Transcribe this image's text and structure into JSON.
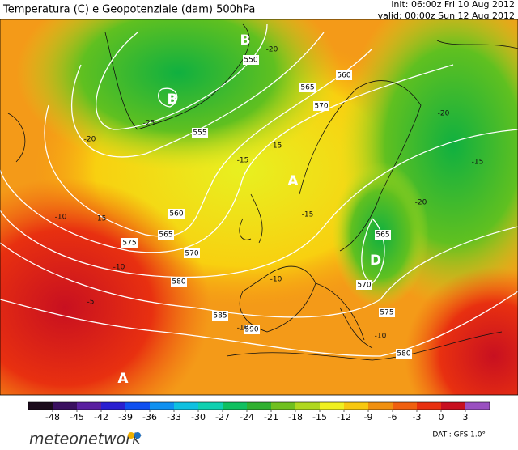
{
  "header": {
    "title": "Temperatura (C) e Geopotenziale (dam) 500hPa",
    "init": "init: 06:00z Fri 10 Aug 2012",
    "valid": "valid: 00:00z Sun 12 Aug 2012"
  },
  "map": {
    "geopotential_labels": [
      "550",
      "555",
      "560",
      "565",
      "570",
      "560",
      "565",
      "570",
      "575",
      "580",
      "585",
      "590",
      "565",
      "570",
      "575",
      "580"
    ],
    "temperature_labels": [
      "-20",
      "-25",
      "-20",
      "-15",
      "-20",
      "-20",
      "-15",
      "-10",
      "-15",
      "-10",
      "-5",
      "-15",
      "-15",
      "-10",
      "-10",
      "-10"
    ],
    "centers": [
      "B",
      "B",
      "A",
      "A",
      "D"
    ]
  },
  "colorbar": {
    "ticks": [
      -48,
      -45,
      -42,
      -39,
      -36,
      -33,
      -30,
      -27,
      -24,
      -21,
      -18,
      -15,
      -12,
      -9,
      -6,
      -3,
      0,
      3
    ],
    "colors": [
      "#1a0a1a",
      "#3a1060",
      "#5a20a0",
      "#2a20d0",
      "#1050f0",
      "#1090f0",
      "#10c0e0",
      "#10d0b0",
      "#10c060",
      "#30b030",
      "#70c020",
      "#b0d820",
      "#f0f020",
      "#f8c810",
      "#f09010",
      "#f06010",
      "#e83010",
      "#c81020",
      "#9a50c0"
    ]
  },
  "footer": {
    "source": "DATI: GFS 1.0°",
    "brand": "meteonetwork"
  }
}
